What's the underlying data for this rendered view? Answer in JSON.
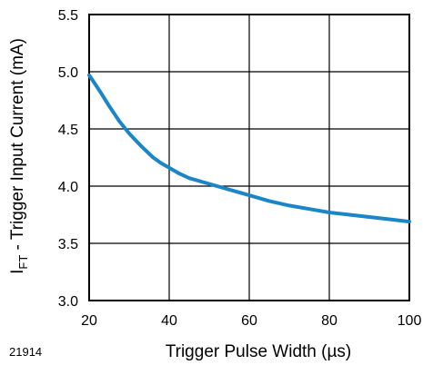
{
  "figure_id": "21914",
  "chart_data": {
    "type": "line",
    "xlabel": "Trigger Pulse Width (µs)",
    "ylabel_main": "I",
    "ylabel_sub": "FT",
    "ylabel_rest": " - Trigger Input Current (mA)",
    "xlim": [
      20,
      100
    ],
    "ylim": [
      3.0,
      5.5
    ],
    "x_ticks": [
      20,
      40,
      60,
      80,
      100
    ],
    "x_tick_labels": [
      "20",
      "40",
      "60",
      "80",
      "100"
    ],
    "y_ticks": [
      3.0,
      3.5,
      4.0,
      4.5,
      5.0,
      5.5
    ],
    "y_tick_labels": [
      "3.0",
      "3.5",
      "4.0",
      "4.5",
      "5.0",
      "5.5"
    ],
    "grid": true,
    "line_color": "#1a86c8",
    "series": [
      {
        "x": [
          20,
          22.5,
          25,
          27.5,
          30,
          33,
          36,
          38,
          40,
          42.5,
          45,
          50,
          55,
          60,
          65,
          70,
          75,
          80,
          85,
          90,
          95,
          100
        ],
        "y": [
          4.97,
          4.84,
          4.7,
          4.57,
          4.46,
          4.35,
          4.25,
          4.2,
          4.16,
          4.11,
          4.07,
          4.02,
          3.97,
          3.92,
          3.87,
          3.83,
          3.8,
          3.77,
          3.75,
          3.73,
          3.71,
          3.69
        ]
      }
    ]
  }
}
